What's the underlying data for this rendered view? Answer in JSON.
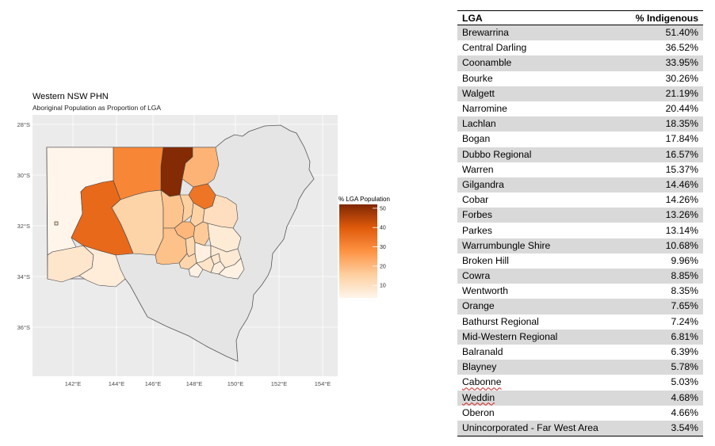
{
  "chart_data": [
    {
      "type": "choropleth",
      "title": "Western NSW PHN",
      "subtitle": "Aboriginal Population as Proportion of LGA",
      "x_ticks": [
        "142°E",
        "144°E",
        "146°E",
        "148°E",
        "150°E",
        "152°E",
        "154°E"
      ],
      "y_ticks": [
        "28°S",
        "30°S",
        "32°S",
        "34°S",
        "36°S"
      ],
      "legend": {
        "title": "% LGA Population",
        "ticks": [
          "50",
          "40",
          "30",
          "20",
          "10"
        ],
        "range": [
          3.5,
          52
        ],
        "color_low": "#fee6ce",
        "color_high": "#7f2704"
      },
      "regions": [
        {
          "name": "Unincorporated - Far West Area",
          "value": 3.54
        },
        {
          "name": "Brewarrina",
          "value": 51.4
        },
        {
          "name": "Central Darling",
          "value": 36.52
        },
        {
          "name": "Bourke",
          "value": 30.26
        },
        {
          "name": "Walgett",
          "value": 21.19
        },
        {
          "name": "Coonamble",
          "value": 33.95
        },
        {
          "name": "Broken Hill",
          "value": 9.96
        },
        {
          "name": "Wentworth",
          "value": 8.35
        },
        {
          "name": "Balranald",
          "value": 6.39
        },
        {
          "name": "Cobar",
          "value": 14.26
        },
        {
          "name": "Bogan",
          "value": 17.84
        },
        {
          "name": "Warren",
          "value": 15.37
        },
        {
          "name": "Gilgandra",
          "value": 14.46
        },
        {
          "name": "Warrumbungle Shire",
          "value": 10.68
        },
        {
          "name": "Narromine",
          "value": 20.44
        },
        {
          "name": "Dubbo Regional",
          "value": 16.57
        },
        {
          "name": "Lachlan",
          "value": 18.35
        },
        {
          "name": "Parkes",
          "value": 13.14
        },
        {
          "name": "Forbes",
          "value": 13.26
        },
        {
          "name": "Mid-Western Regional",
          "value": 6.81
        },
        {
          "name": "Cabonne",
          "value": 5.03
        },
        {
          "name": "Orange",
          "value": 7.65
        },
        {
          "name": "Weddin",
          "value": 4.68
        },
        {
          "name": "Cowra",
          "value": 8.85
        },
        {
          "name": "Blayney",
          "value": 5.78
        },
        {
          "name": "Bathurst Regional",
          "value": 7.24
        },
        {
          "name": "Oberon",
          "value": 4.66
        }
      ]
    },
    {
      "type": "table",
      "columns": [
        "LGA",
        "% Indigenous"
      ],
      "rows": [
        [
          "Brewarrina",
          "51.40%"
        ],
        [
          "Central Darling",
          "36.52%"
        ],
        [
          "Coonamble",
          "33.95%"
        ],
        [
          "Bourke",
          "30.26%"
        ],
        [
          "Walgett",
          "21.19%"
        ],
        [
          "Narromine",
          "20.44%"
        ],
        [
          "Lachlan",
          "18.35%"
        ],
        [
          "Bogan",
          "17.84%"
        ],
        [
          "Dubbo Regional",
          "16.57%"
        ],
        [
          "Warren",
          "15.37%"
        ],
        [
          "Gilgandra",
          "14.46%"
        ],
        [
          "Cobar",
          "14.26%"
        ],
        [
          "Forbes",
          "13.26%"
        ],
        [
          "Parkes",
          "13.14%"
        ],
        [
          "Warrumbungle Shire",
          "10.68%"
        ],
        [
          "Broken Hill",
          "9.96%"
        ],
        [
          "Cowra",
          "8.85%"
        ],
        [
          "Wentworth",
          "8.35%"
        ],
        [
          "Orange",
          "7.65%"
        ],
        [
          "Bathurst Regional",
          "7.24%"
        ],
        [
          "Mid-Western Regional",
          "6.81%"
        ],
        [
          "Balranald",
          "6.39%"
        ],
        [
          "Blayney",
          "5.78%"
        ],
        [
          "Cabonne",
          "5.03%"
        ],
        [
          "Weddin",
          "4.68%"
        ],
        [
          "Oberon",
          "4.66%"
        ],
        [
          "Unincorporated - Far West Area",
          "3.54%"
        ]
      ],
      "spellcheck_flagged": [
        "Cabonne",
        "Weddin"
      ]
    }
  ]
}
